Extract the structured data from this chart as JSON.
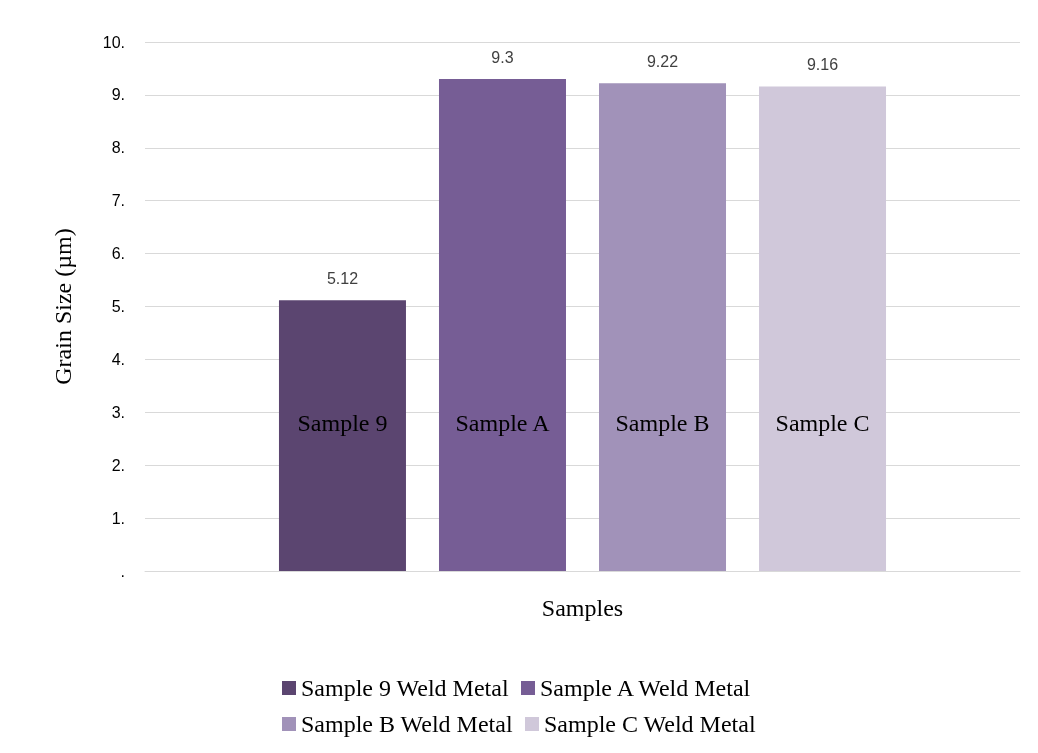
{
  "chart_data": {
    "type": "bar",
    "xlabel": "Samples",
    "ylabel": "Grain Size (µm)",
    "categories": [
      null
    ],
    "series": [
      {
        "name": "Sample 9 Weld Metal",
        "color": "#5b4570",
        "values": [
          5.12
        ]
      },
      {
        "name": "Sample A Weld Metal",
        "color": "#765d95",
        "values": [
          9.3
        ]
      },
      {
        "name": "Sample B Weld Metal",
        "color": "#a192b9",
        "values": [
          9.22
        ]
      },
      {
        "name": "Sample C Weld Metal",
        "color": "#d0c8da",
        "values": [
          9.16
        ]
      }
    ],
    "annotations": [
      "Sample 9",
      "Sample A",
      "Sample B",
      "Sample C"
    ],
    "ylim": [
      0,
      10
    ],
    "yticks": [
      {
        "value": 0,
        "label": "."
      },
      {
        "value": 1,
        "label": "1."
      },
      {
        "value": 2,
        "label": "2."
      },
      {
        "value": 3,
        "label": "3."
      },
      {
        "value": 4,
        "label": "4."
      },
      {
        "value": 5,
        "label": "5."
      },
      {
        "value": 6,
        "label": "6."
      },
      {
        "value": 7,
        "label": "7."
      },
      {
        "value": 8,
        "label": "8."
      },
      {
        "value": 9,
        "label": "9."
      },
      {
        "value": 10,
        "label": "10."
      }
    ],
    "data_labels": true,
    "grid": "y",
    "legend": "bottom"
  }
}
